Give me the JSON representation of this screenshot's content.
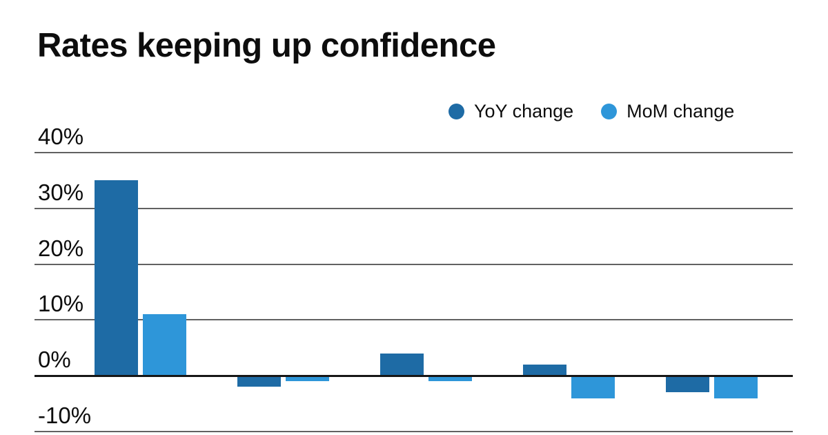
{
  "title": "Rates keeping up confidence",
  "legend": {
    "items": [
      {
        "label": "YoY change",
        "color": "#1e6ba5"
      },
      {
        "label": "MoM change",
        "color": "#2e96d9"
      }
    ]
  },
  "y_ticks": [
    {
      "label": "40%",
      "value": 40
    },
    {
      "label": "30%",
      "value": 30
    },
    {
      "label": "20%",
      "value": 20
    },
    {
      "label": "10%",
      "value": 10
    },
    {
      "label": "0%",
      "value": 0
    },
    {
      "label": "-10%",
      "value": -10
    }
  ],
  "colors": {
    "yoy_bar": "#1e6ba5",
    "mom_bar": "#2e96d9",
    "gridline": "#616161",
    "zero_line": "#161616",
    "text": "#0d0d0d",
    "background": "#ffffff"
  },
  "chart_data": {
    "type": "bar",
    "title": "Rates keeping up confidence",
    "categories": [
      "",
      "",
      "",
      "",
      ""
    ],
    "series": [
      {
        "name": "YoY change",
        "color": "#1e6ba5",
        "values": [
          35,
          -2,
          4,
          2,
          -3
        ]
      },
      {
        "name": "MoM change",
        "color": "#2e96d9",
        "values": [
          11,
          -1,
          -1,
          -4,
          -4
        ]
      }
    ],
    "xlabel": "",
    "ylabel": "",
    "ylim": [
      -10,
      40
    ],
    "ytick_step": 10,
    "ytick_format": "percent",
    "grid": true,
    "legend_position": "top-right",
    "x_axis_labels_visible": false
  }
}
